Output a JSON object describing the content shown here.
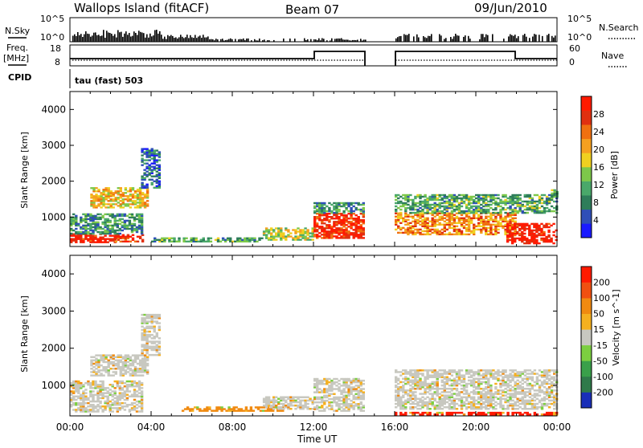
{
  "header": {
    "station": "Wallops Island (fitACF)",
    "beam": "Beam 07",
    "date": "09/Jun/2010"
  },
  "aux_panels": {
    "nsky_label": "N.Sky",
    "nsky_ticks": [
      "10^5",
      "10^0"
    ],
    "nsearch_label": "N.Search",
    "nsearch_ticks": [
      "10^5",
      "10^0"
    ],
    "freq_label": "Freq.",
    "freq_unit": "[MHz]",
    "freq_ticks": [
      "18",
      "8"
    ],
    "nave_label": "Nave",
    "nave_ticks": [
      "60",
      "0"
    ],
    "cpid_label": "CPID",
    "cpid_text": "tau (fast) 503"
  },
  "chart_data": [
    {
      "type": "heatmap",
      "panel": "power",
      "xlabel": "",
      "ylabel": "Slant Range [km]",
      "x_ticks": [
        "00:00",
        "04:00",
        "08:00",
        "12:00",
        "16:00",
        "20:00",
        "00:00"
      ],
      "y_ticks": [
        "1000",
        "2000",
        "3000",
        "4000"
      ],
      "xlim_hours": [
        0,
        24
      ],
      "ylim_km": [
        180,
        4500
      ],
      "data_gap_hours": [
        14.5,
        16.0
      ],
      "colorbar": {
        "label": "Power [dB]",
        "ticks": [
          "4",
          "8",
          "12",
          "16",
          "20",
          "24",
          "28"
        ],
        "colors": [
          "#1a1aff",
          "#2f4fb8",
          "#2e7d5a",
          "#4aa86a",
          "#7dc84a",
          "#f0d020",
          "#f5a020",
          "#f07010",
          "#e03010",
          "#ff1a00"
        ]
      },
      "regions": [
        {
          "t": [
            0.0,
            2.2
          ],
          "r": [
            280,
            520
          ],
          "level": 0.95
        },
        {
          "t": [
            2.2,
            3.6
          ],
          "r": [
            300,
            520
          ],
          "level": 0.85
        },
        {
          "t": [
            0.0,
            3.5
          ],
          "r": [
            520,
            1100
          ],
          "level": 0.3
        },
        {
          "t": [
            1.0,
            3.8
          ],
          "r": [
            1250,
            1800
          ],
          "level": 0.6
        },
        {
          "t": [
            3.5,
            4.4
          ],
          "r": [
            1800,
            2900
          ],
          "level": 0.2
        },
        {
          "t": [
            4.0,
            9.5
          ],
          "r": [
            300,
            420
          ],
          "level": 0.35
        },
        {
          "t": [
            9.5,
            12.0
          ],
          "r": [
            350,
            700
          ],
          "level": 0.5
        },
        {
          "t": [
            12.0,
            14.5
          ],
          "r": [
            400,
            1100
          ],
          "level": 0.9
        },
        {
          "t": [
            12.0,
            14.5
          ],
          "r": [
            1100,
            1400
          ],
          "level": 0.3
        },
        {
          "t": [
            16.0,
            22.0
          ],
          "r": [
            500,
            1100
          ],
          "level": 0.7
        },
        {
          "t": [
            16.0,
            24.0
          ],
          "r": [
            1100,
            1600
          ],
          "level": 0.35
        },
        {
          "t": [
            21.5,
            24.0
          ],
          "r": [
            250,
            800
          ],
          "level": 0.95
        },
        {
          "t": [
            23.7,
            24.0
          ],
          "r": [
            1550,
            1750
          ],
          "level": 0.4
        }
      ]
    },
    {
      "type": "heatmap",
      "panel": "velocity",
      "xlabel": "Time UT",
      "ylabel": "Slant Range [km]",
      "x_ticks": [
        "00:00",
        "04:00",
        "08:00",
        "12:00",
        "16:00",
        "20:00",
        "00:00"
      ],
      "y_ticks": [
        "1000",
        "2000",
        "3000",
        "4000"
      ],
      "xlim_hours": [
        0,
        24
      ],
      "ylim_km": [
        180,
        4500
      ],
      "data_gap_hours": [
        14.5,
        16.0
      ],
      "colorbar": {
        "label": "Velocity [m s^-1]",
        "ticks": [
          "200",
          "100",
          "50",
          "15",
          "-15",
          "-50",
          "-100",
          "-200"
        ],
        "colors": [
          "#1a2fb8",
          "#2f7a4a",
          "#3aa04a",
          "#7ccf40",
          "#c8c8c0",
          "#f5b020",
          "#f08a10",
          "#f05010",
          "#ff1a00"
        ]
      },
      "regions": [
        {
          "t": [
            0.0,
            3.6
          ],
          "r": [
            280,
            1100
          ],
          "level": 0.45
        },
        {
          "t": [
            1.0,
            3.8
          ],
          "r": [
            1250,
            1800
          ],
          "level": 0.45
        },
        {
          "t": [
            3.5,
            4.4
          ],
          "r": [
            1800,
            2900
          ],
          "level": 0.45
        },
        {
          "t": [
            5.5,
            10.5
          ],
          "r": [
            300,
            420
          ],
          "level": 0.7
        },
        {
          "t": [
            9.5,
            12.0
          ],
          "r": [
            350,
            700
          ],
          "level": 0.45
        },
        {
          "t": [
            12.0,
            14.5
          ],
          "r": [
            300,
            1200
          ],
          "level": 0.45
        },
        {
          "t": [
            16.0,
            24.0
          ],
          "r": [
            350,
            1400
          ],
          "level": 0.45
        },
        {
          "t": [
            16.0,
            24.0
          ],
          "r": [
            200,
            260
          ],
          "level": 0.95
        }
      ]
    }
  ],
  "colors": {
    "gap": "#ffffff",
    "axis": "#000000"
  }
}
